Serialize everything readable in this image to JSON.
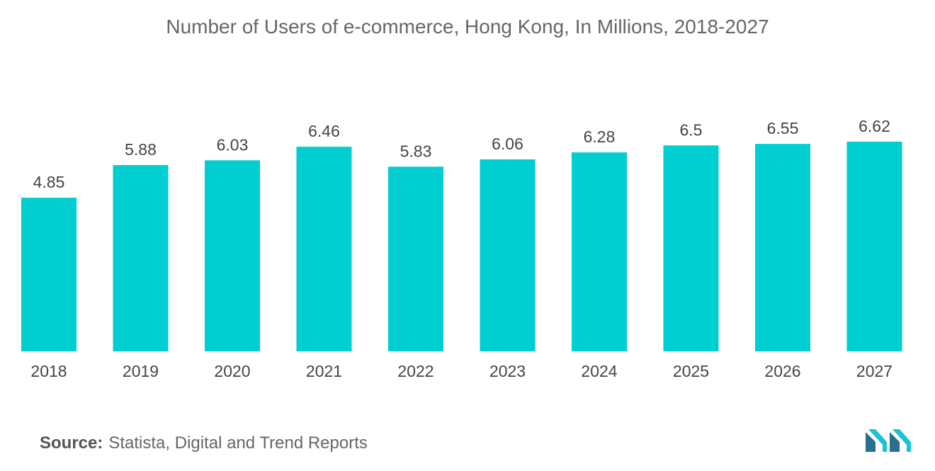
{
  "title": "Number of Users of e-commerce, Hong Kong, In Millions, 2018-2027",
  "source": {
    "label": "Source:",
    "text": "Statista, Digital and Trend Reports"
  },
  "colors": {
    "bar": "#00CED1",
    "text": "#444444",
    "logo_dark": "#2a6f8f",
    "logo_light": "#19c3d6"
  },
  "chart_data": {
    "type": "bar",
    "title": "Number of Users of e-commerce, Hong Kong, In Millions, 2018-2027",
    "categories": [
      "2018",
      "2019",
      "2020",
      "2021",
      "2022",
      "2023",
      "2024",
      "2025",
      "2026",
      "2027"
    ],
    "values": [
      4.85,
      5.88,
      6.03,
      6.46,
      5.83,
      6.06,
      6.28,
      6.5,
      6.55,
      6.62
    ],
    "value_labels": [
      "4.85",
      "5.88",
      "6.03",
      "6.46",
      "5.83",
      "6.06",
      "6.28",
      "6.5",
      "6.55",
      "6.62"
    ],
    "xlabel": "",
    "ylabel": "",
    "ylim": [
      0,
      6.62
    ],
    "grid": false,
    "legend": "none"
  }
}
